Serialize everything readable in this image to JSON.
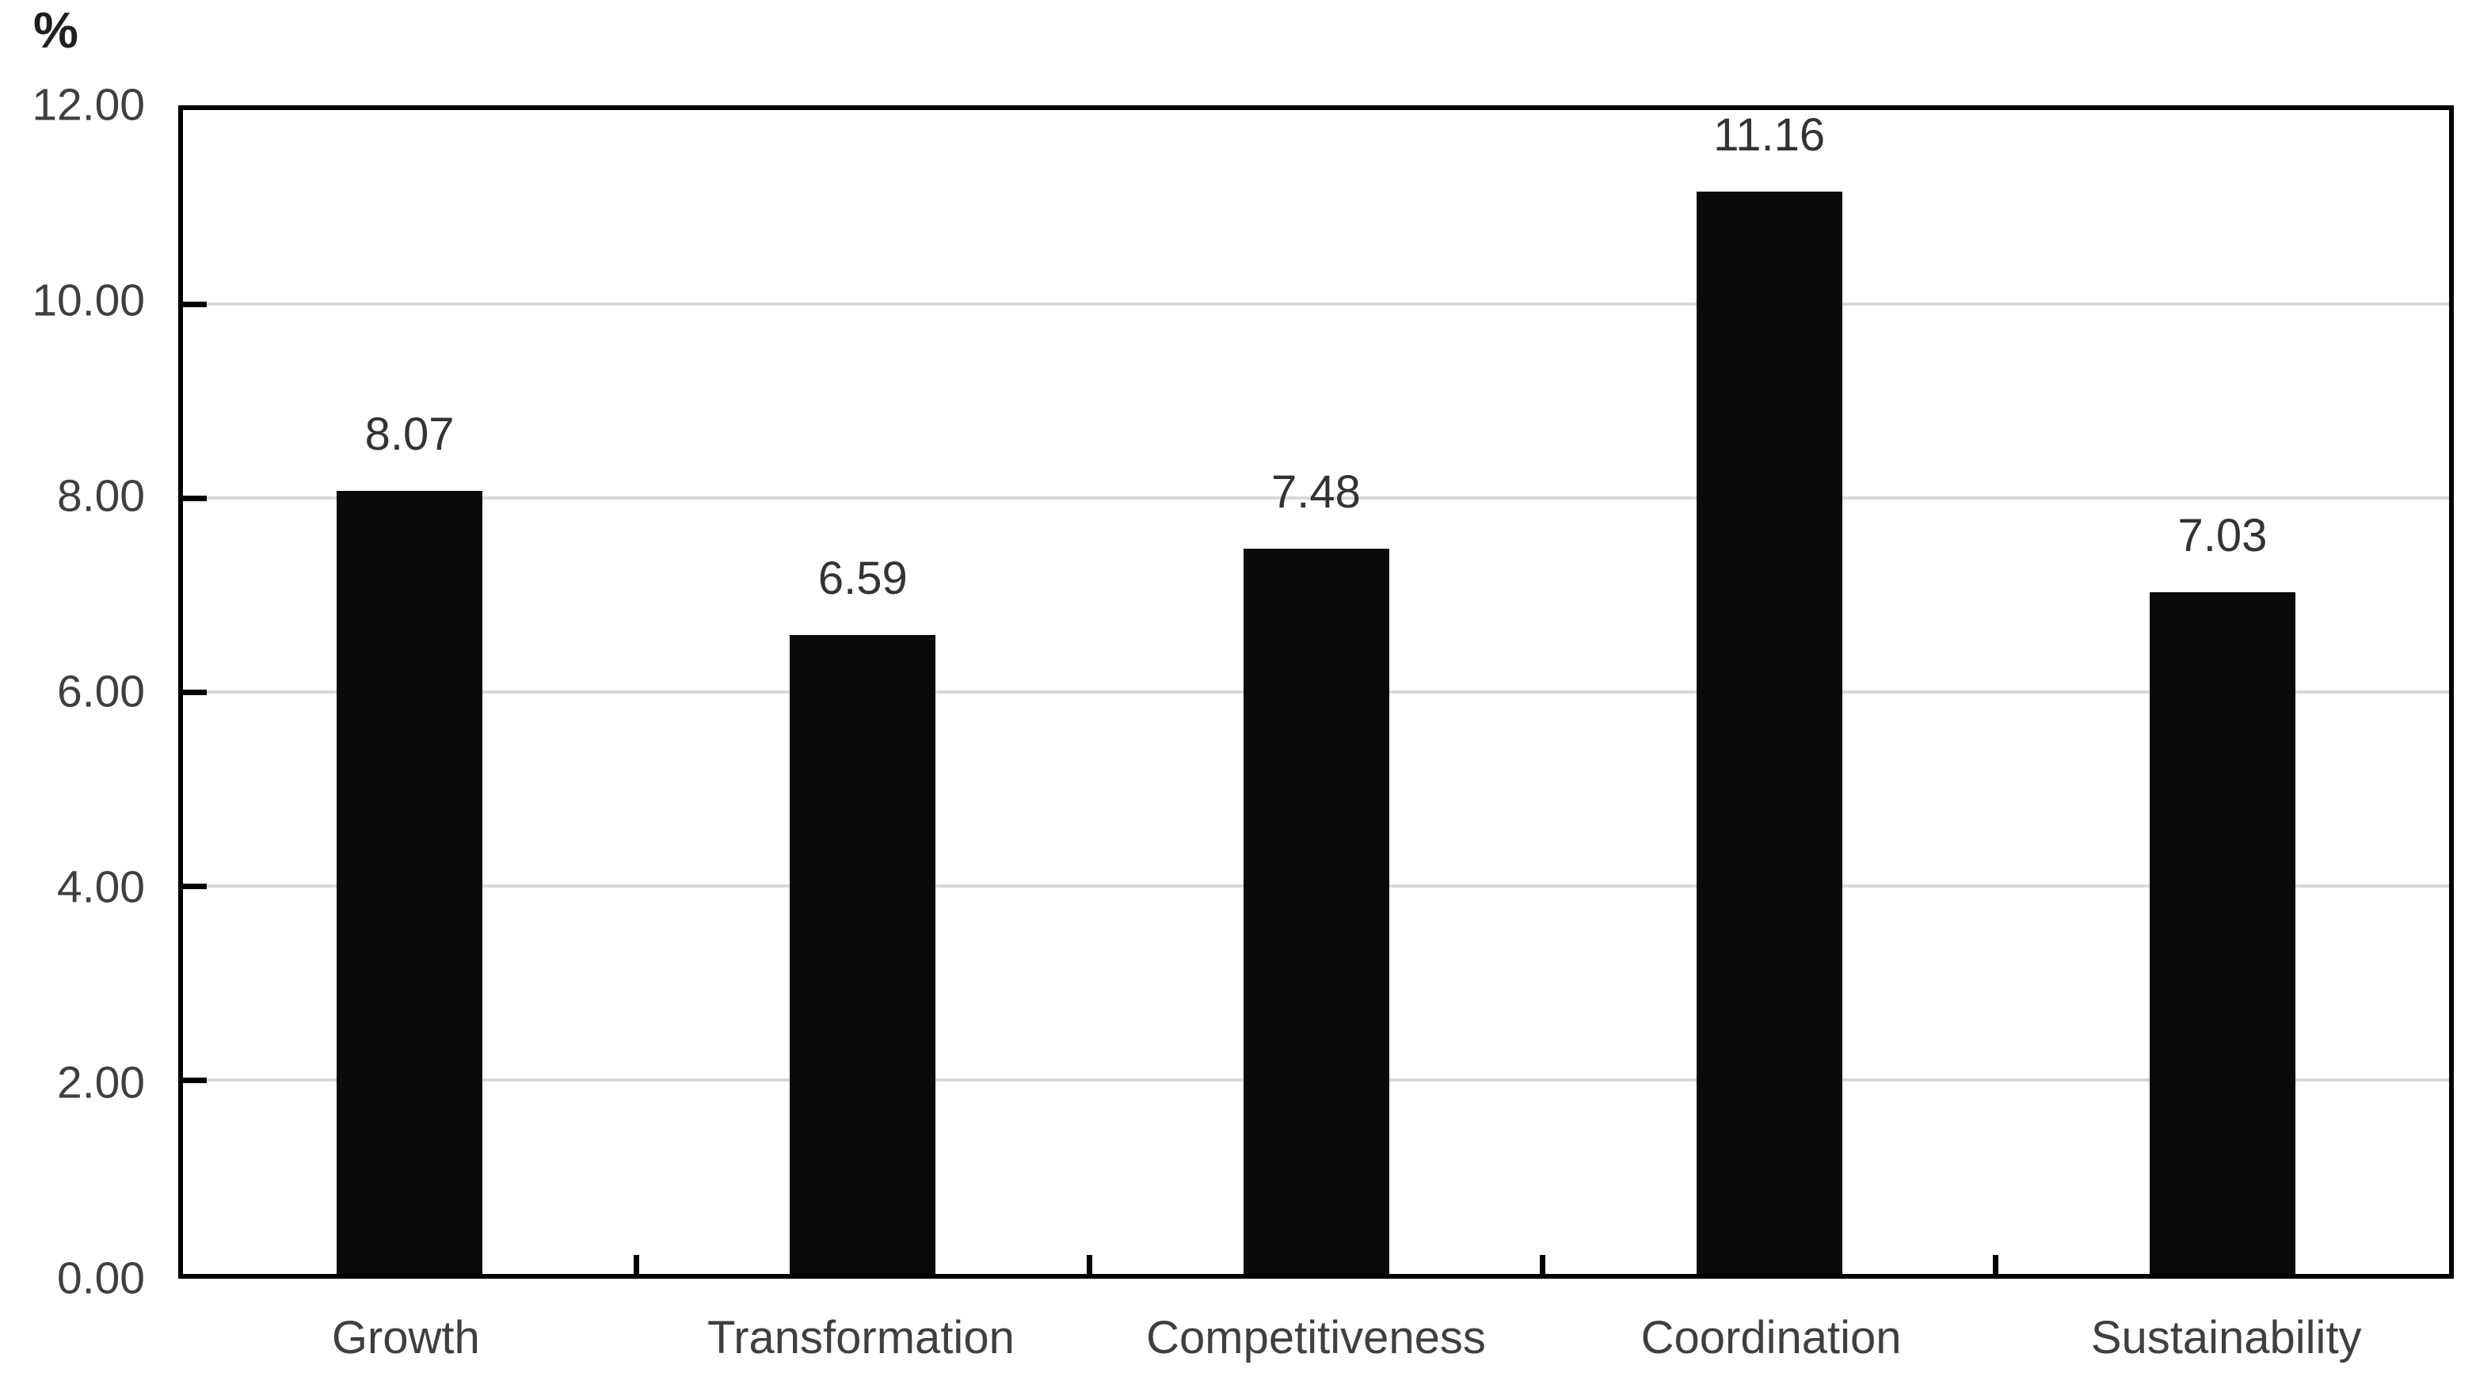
{
  "chart_data": {
    "type": "bar",
    "title": "",
    "ylabel": "%",
    "xlabel": "",
    "categories": [
      "Growth",
      "Transformation",
      "Competitiveness",
      "Coordination",
      "Sustainability"
    ],
    "values": [
      8.07,
      6.59,
      7.48,
      11.16,
      7.03
    ],
    "value_labels": [
      "8.07",
      "6.59",
      "7.48",
      "11.16",
      "7.03"
    ],
    "ylim": [
      0,
      12
    ],
    "yticks": [
      0,
      2,
      4,
      6,
      8,
      10,
      12
    ],
    "ytick_labels": [
      "0.00",
      "2.00",
      "4.00",
      "6.00",
      "8.00",
      "10.00",
      "12.00"
    ],
    "grid": true,
    "legend_position": "none",
    "colors": {
      "bar": "#0a0a0a",
      "axis": "#000000",
      "gridline": "#d9d9d9",
      "tick_label_text": "#3f3f3f",
      "value_label_text": "#333333",
      "background": "#ffffff"
    }
  }
}
